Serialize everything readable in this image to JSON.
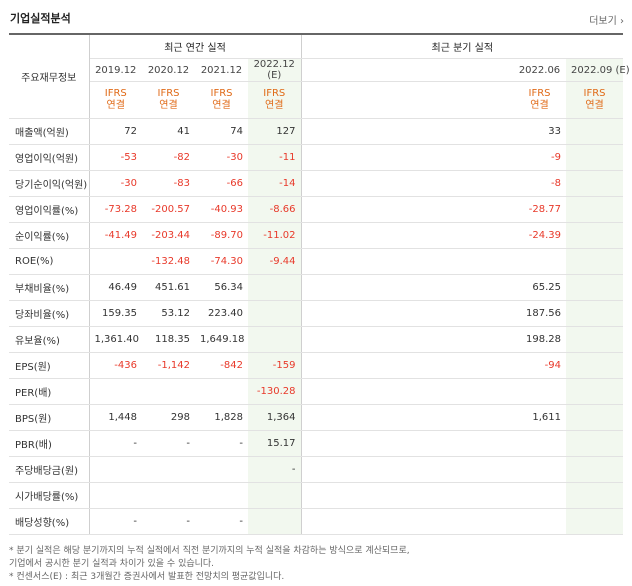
{
  "header": {
    "title": "기업실적분석",
    "more_label": "더보기 ›"
  },
  "table": {
    "row_header_label": "주요재무정보",
    "annual_group_label": "최근 연간 실적",
    "quarter_group_label": "최근 분기 실적",
    "annual_periods": [
      {
        "year": "2019.12",
        "estimate": "",
        "standard": [
          "IFRS",
          "연결"
        ]
      },
      {
        "year": "2020.12",
        "estimate": "",
        "standard": [
          "IFRS",
          "연결"
        ]
      },
      {
        "year": "2021.12",
        "estimate": "",
        "standard": [
          "IFRS",
          "연결"
        ]
      },
      {
        "year": "2022.12",
        "estimate": "(E)",
        "standard": [
          "IFRS",
          "연결"
        ]
      }
    ],
    "quarter_periods": [
      {
        "year": "",
        "standard": [
          "",
          ""
        ]
      },
      {
        "year": "",
        "standard": [
          "",
          ""
        ]
      },
      {
        "year": "",
        "standard": [
          "",
          ""
        ]
      },
      {
        "year": "",
        "standard": [
          "",
          ""
        ]
      },
      {
        "year": "2022.06",
        "standard": [
          "IFRS",
          "연결"
        ]
      },
      {
        "year": "2022.09 (E)",
        "standard": [
          "IFRS",
          "연결"
        ]
      }
    ],
    "rows": [
      {
        "label": "매출액(억원)",
        "annual": [
          "72",
          "41",
          "74",
          "127"
        ],
        "quarter": [
          "",
          "",
          "",
          "",
          "33",
          ""
        ]
      },
      {
        "label": "영업이익(억원)",
        "annual": [
          "-53",
          "-82",
          "-30",
          "-11"
        ],
        "quarter": [
          "",
          "",
          "",
          "",
          "-9",
          ""
        ]
      },
      {
        "label": "당기순이익(억원)",
        "annual": [
          "-30",
          "-83",
          "-66",
          "-14"
        ],
        "quarter": [
          "",
          "",
          "",
          "",
          "-8",
          ""
        ]
      },
      {
        "label": "영업이익률(%)",
        "annual": [
          "-73.28",
          "-200.57",
          "-40.93",
          "-8.66"
        ],
        "quarter": [
          "",
          "",
          "",
          "",
          "-28.77",
          ""
        ]
      },
      {
        "label": "순이익률(%)",
        "annual": [
          "-41.49",
          "-203.44",
          "-89.70",
          "-11.02"
        ],
        "quarter": [
          "",
          "",
          "",
          "",
          "-24.39",
          ""
        ]
      },
      {
        "label": "ROE(%)",
        "annual": [
          "",
          "-132.48",
          "-74.30",
          "-9.44"
        ],
        "quarter": [
          "",
          "",
          "",
          "",
          "",
          ""
        ]
      },
      {
        "label": "부채비율(%)",
        "annual": [
          "46.49",
          "451.61",
          "56.34",
          ""
        ],
        "quarter": [
          "",
          "",
          "",
          "",
          "65.25",
          ""
        ]
      },
      {
        "label": "당좌비율(%)",
        "annual": [
          "159.35",
          "53.12",
          "223.40",
          ""
        ],
        "quarter": [
          "",
          "",
          "",
          "",
          "187.56",
          ""
        ]
      },
      {
        "label": "유보율(%)",
        "annual": [
          "1,361.40",
          "118.35",
          "1,649.18",
          ""
        ],
        "quarter": [
          "",
          "",
          "",
          "",
          "198.28",
          ""
        ]
      },
      {
        "label": "EPS(원)",
        "annual": [
          "-436",
          "-1,142",
          "-842",
          "-159"
        ],
        "quarter": [
          "",
          "",
          "",
          "",
          "-94",
          ""
        ]
      },
      {
        "label": "PER(배)",
        "annual": [
          "",
          "",
          "",
          "-130.28"
        ],
        "quarter": [
          "",
          "",
          "",
          "",
          "",
          ""
        ]
      },
      {
        "label": "BPS(원)",
        "annual": [
          "1,448",
          "298",
          "1,828",
          "1,364"
        ],
        "quarter": [
          "",
          "",
          "",
          "",
          "1,611",
          ""
        ]
      },
      {
        "label": "PBR(배)",
        "annual": [
          "-",
          "-",
          "-",
          "15.17"
        ],
        "quarter": [
          "",
          "",
          "",
          "",
          "",
          ""
        ]
      },
      {
        "label": "주당배당금(원)",
        "annual": [
          "",
          "",
          "",
          "-"
        ],
        "quarter": [
          "",
          "",
          "",
          "",
          "",
          ""
        ]
      },
      {
        "label": "시가배당률(%)",
        "annual": [
          "",
          "",
          "",
          ""
        ],
        "quarter": [
          "",
          "",
          "",
          "",
          "",
          ""
        ]
      },
      {
        "label": "배당성향(%)",
        "annual": [
          "-",
          "-",
          "-",
          ""
        ],
        "quarter": [
          "",
          "",
          "",
          "",
          "",
          ""
        ]
      }
    ]
  },
  "notes": [
    "* 분기 실적은 해당 분기까지의 누적 실적에서 직전 분기까지의 누적 실적을 차감하는 방식으로 계산되므로,",
    "  기업에서 공시한 분기 실적과 차이가 있을 수 있습니다.",
    "* 컨센서스(E) : 최근 3개월간 증권사에서 발표한 전망치의 평균값입니다."
  ]
}
